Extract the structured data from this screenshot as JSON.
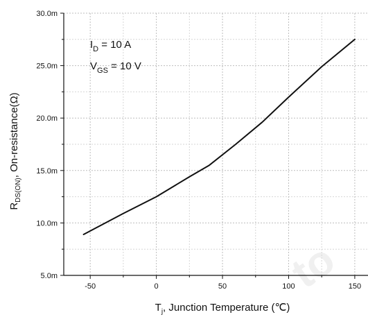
{
  "chart_data": {
    "type": "line",
    "title": "",
    "xlabel": {
      "main": "T",
      "sub": "j",
      "rest": ", Junction Temperature (℃)"
    },
    "ylabel": {
      "main": "R",
      "sub": "DS(ON)",
      "rest": ", On-resistance(Ω)"
    },
    "xlim": [
      -70,
      160
    ],
    "ylim": [
      5.0,
      30.0
    ],
    "xticks": [
      -50,
      0,
      50,
      100,
      150
    ],
    "xtick_labels": [
      "-50",
      "0",
      "50",
      "100",
      "150"
    ],
    "yticks": [
      5.0,
      10.0,
      15.0,
      20.0,
      25.0,
      30.0
    ],
    "ytick_labels": [
      "5.0m",
      "10.0m",
      "15.0m",
      "20.0m",
      "25.0m",
      "30.0m"
    ],
    "grid": true,
    "grid_style": "dotted",
    "annotations": [
      {
        "main": "I",
        "sub": "D",
        "rest": " = 10 A"
      },
      {
        "main": "V",
        "sub": "GS",
        "rest": " = 10 V"
      }
    ],
    "series": [
      {
        "color": "#111111",
        "x": [
          -55,
          -25,
          0,
          25,
          40,
          60,
          80,
          100,
          125,
          150
        ],
        "y": [
          8.9,
          10.9,
          12.5,
          14.4,
          15.5,
          17.5,
          19.6,
          22.0,
          24.9,
          27.5
        ]
      }
    ]
  },
  "watermark": "to"
}
